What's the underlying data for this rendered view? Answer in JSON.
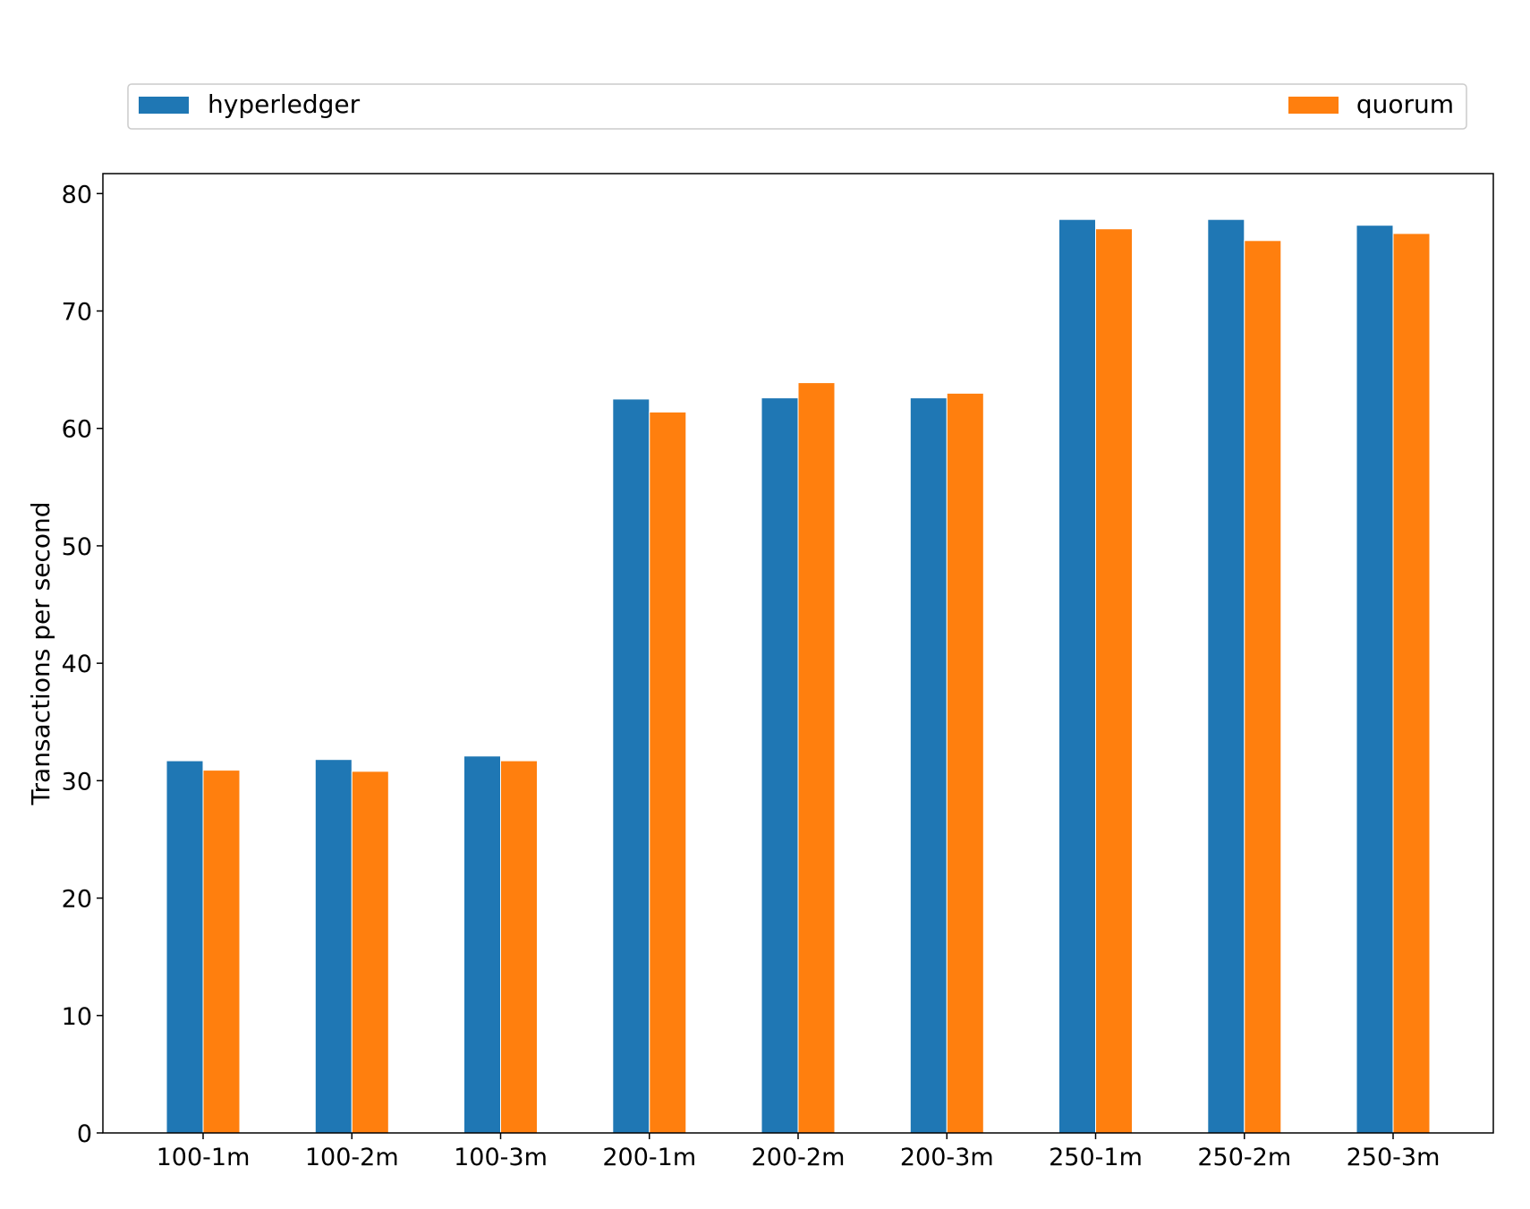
{
  "chart_data": {
    "type": "bar",
    "title": "",
    "xlabel": "",
    "ylabel": "Transactions per second",
    "categories": [
      "100-1m",
      "100-2m",
      "100-3m",
      "200-1m",
      "200-2m",
      "200-3m",
      "250-1m",
      "250-2m",
      "250-3m"
    ],
    "series": [
      {
        "name": "hyperledger",
        "color": "#1f77b4",
        "values": [
          31.7,
          31.8,
          32.1,
          62.5,
          62.6,
          62.6,
          77.8,
          77.8,
          77.3
        ]
      },
      {
        "name": "quorum",
        "color": "#ff7f0e",
        "values": [
          30.9,
          30.8,
          31.7,
          61.4,
          63.9,
          63.0,
          77.0,
          76.0,
          76.6
        ]
      }
    ],
    "ylim": [
      0,
      81.7
    ],
    "yticks": [
      "0",
      "10",
      "20",
      "30",
      "40",
      "50",
      "60",
      "70",
      "80"
    ],
    "grid": false,
    "legend_position": "top"
  }
}
